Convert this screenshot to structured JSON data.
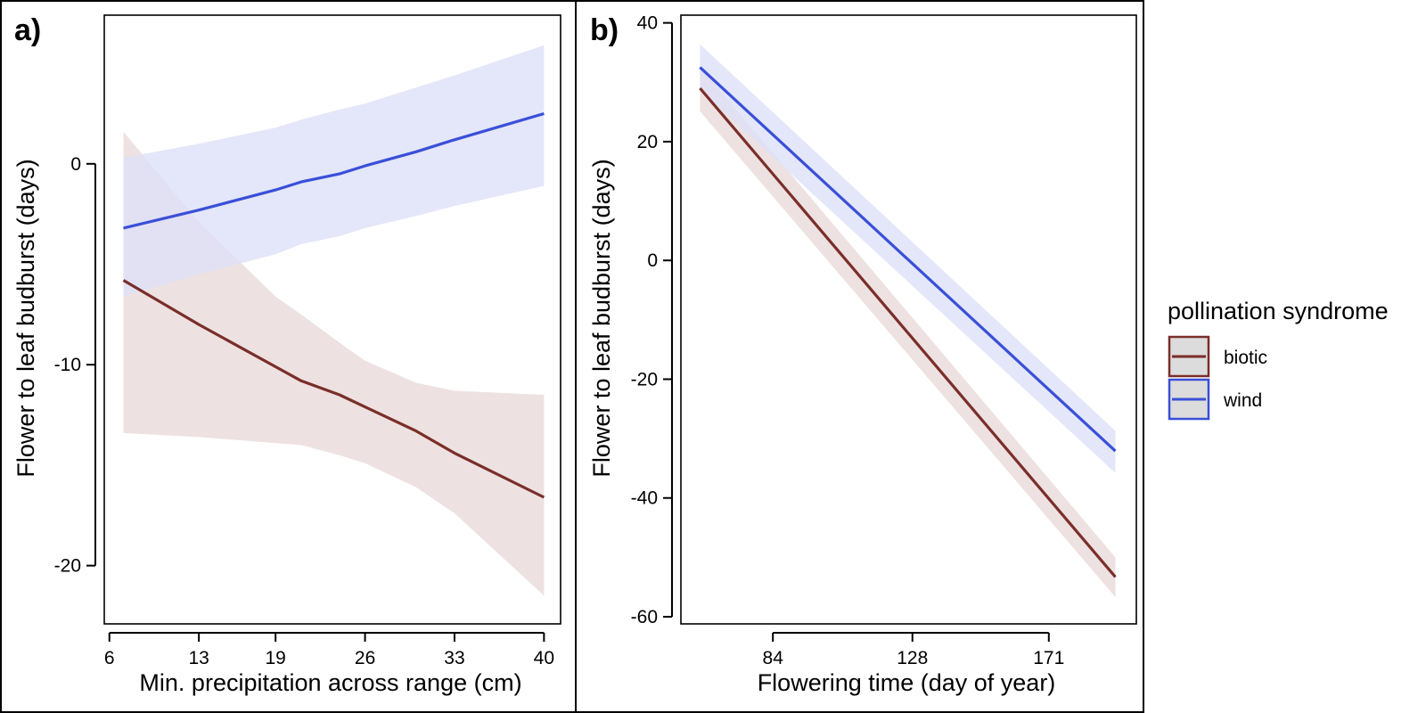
{
  "figure": {
    "colors": {
      "biotic": "#7a2e2a",
      "biotic_band": "#e9dbda",
      "wind": "#3a4fd8",
      "wind_band": "#dde1f8",
      "legend_key_bg": "#dcdcdc"
    }
  },
  "legend": {
    "title": "pollination syndrome",
    "entries": [
      {
        "key": "biotic",
        "label": "biotic"
      },
      {
        "key": "wind",
        "label": "wind"
      }
    ]
  },
  "chart_data": [
    {
      "panel": "a)",
      "type": "line",
      "xlabel": "Min. precipitation across range (cm)",
      "ylabel": "Flower to leaf budburst (days)",
      "xlim": [
        5.6,
        41.3
      ],
      "ylim": [
        -22.9,
        7.4
      ],
      "xticks": [
        {
          "value": 6,
          "label": "6"
        },
        {
          "value": 13,
          "label": "13"
        },
        {
          "value": 19,
          "label": "19"
        },
        {
          "value": 26,
          "label": "26"
        },
        {
          "value": 33,
          "label": "33"
        },
        {
          "value": 40,
          "label": "40"
        }
      ],
      "yticks": [
        {
          "value": 0,
          "label": "0"
        },
        {
          "value": -10,
          "label": "-10"
        },
        {
          "value": -20,
          "label": "-20"
        }
      ],
      "series": [
        {
          "name": "biotic",
          "x": [
            7.1,
            13,
            19,
            21,
            24,
            26,
            30,
            33,
            40
          ],
          "y": [
            -5.8,
            -8.0,
            -10.1,
            -10.8,
            -11.5,
            -12.1,
            -13.3,
            -14.4,
            -16.6
          ],
          "lower": [
            -13.4,
            -13.6,
            -13.9,
            -14.0,
            -14.5,
            -14.9,
            -16.1,
            -17.4,
            -21.5
          ],
          "upper": [
            1.6,
            -2.9,
            -6.6,
            -7.5,
            -8.9,
            -9.8,
            -10.9,
            -11.3,
            -11.5
          ]
        },
        {
          "name": "wind",
          "x": [
            7.1,
            13,
            19,
            21,
            24,
            26,
            30,
            33,
            40
          ],
          "y": [
            -3.2,
            -2.3,
            -1.3,
            -0.9,
            -0.5,
            -0.1,
            0.6,
            1.2,
            2.5
          ],
          "lower": [
            -6.6,
            -5.5,
            -4.5,
            -4.0,
            -3.6,
            -3.2,
            -2.6,
            -2.1,
            -1.1
          ],
          "upper": [
            0.3,
            1.0,
            1.8,
            2.2,
            2.7,
            3.0,
            3.8,
            4.4,
            5.9
          ]
        }
      ]
    },
    {
      "panel": "b)",
      "type": "line",
      "xlabel": "Flowering time (day of year)",
      "ylabel": "Flower to leaf budburst (days)",
      "xlim": [
        55,
        198.6
      ],
      "ylim": [
        -61.2,
        41.3
      ],
      "xticks": [
        {
          "value": 84,
          "label": "84"
        },
        {
          "value": 128,
          "label": "128"
        },
        {
          "value": 171,
          "label": "171"
        }
      ],
      "yticks": [
        {
          "value": 40,
          "label": "40"
        },
        {
          "value": 20,
          "label": "20"
        },
        {
          "value": 0,
          "label": "0"
        },
        {
          "value": -20,
          "label": "-20"
        },
        {
          "value": -40,
          "label": "-40"
        },
        {
          "value": -60,
          "label": "-60"
        }
      ],
      "series": [
        {
          "name": "biotic",
          "x": [
            61,
            192
          ],
          "y": [
            29.0,
            -53.3
          ],
          "lower": [
            25.1,
            -56.7
          ],
          "upper": [
            32.6,
            -50.0
          ]
        },
        {
          "name": "wind",
          "x": [
            61,
            192
          ],
          "y": [
            32.5,
            -32.1
          ],
          "lower": [
            28.7,
            -35.8
          ],
          "upper": [
            36.4,
            -28.7
          ]
        }
      ]
    }
  ]
}
